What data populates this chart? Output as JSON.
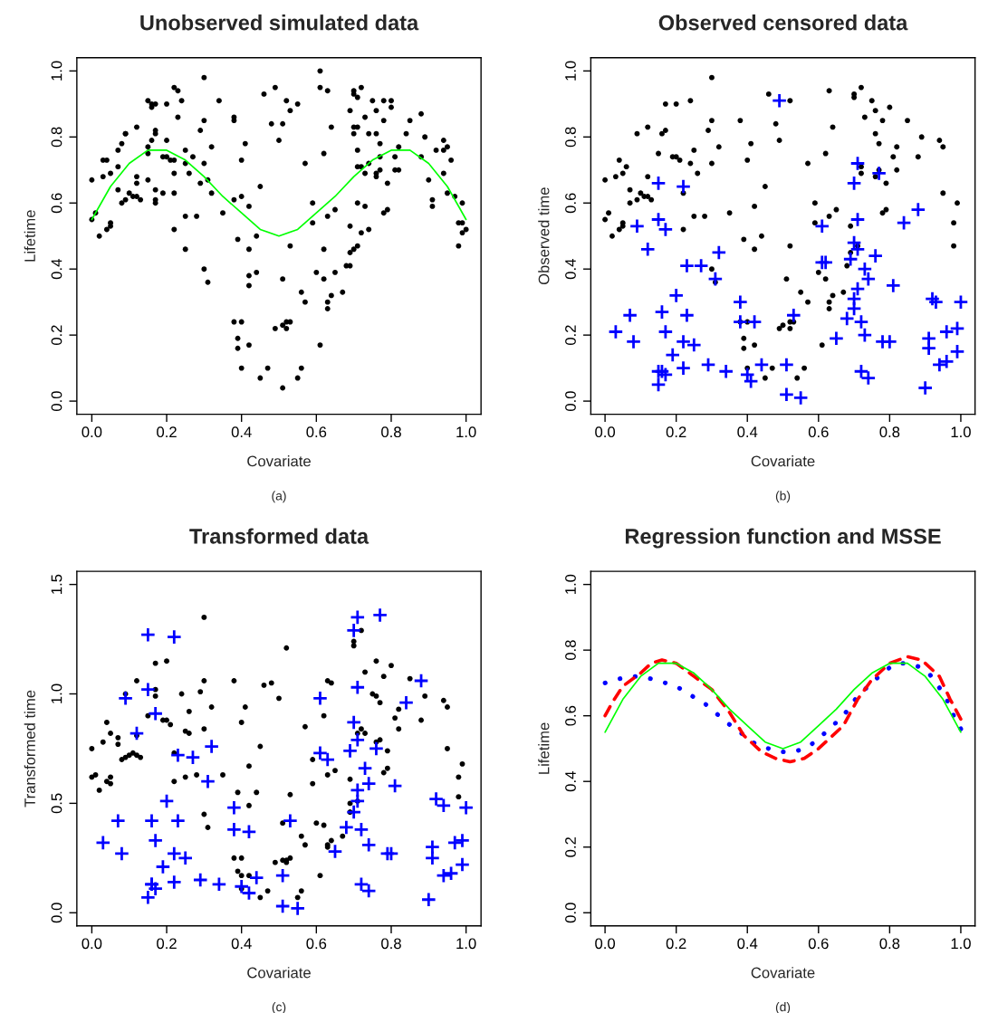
{
  "chart_data": [
    {
      "type": "scatter",
      "title": "Unobserved simulated data",
      "xlabel": "Covariate",
      "ylabel": "Lifetime",
      "annotations": [
        "(a)"
      ],
      "xlim": [
        -0.04,
        1.04
      ],
      "ylim": [
        -0.04,
        1.04
      ],
      "xticks": [
        {
          "value": 0,
          "label": "0.0"
        },
        {
          "value": 0.2,
          "label": "0.2"
        },
        {
          "value": 0.4,
          "label": "0.4"
        },
        {
          "value": 0.6,
          "label": "0.6"
        },
        {
          "value": 0.8,
          "label": "0.8"
        },
        {
          "value": 1,
          "label": "1.0"
        }
      ],
      "yticks": [
        {
          "value": 0,
          "label": "0.0"
        },
        {
          "value": 0.2,
          "label": "0.2"
        },
        {
          "value": 0.4,
          "label": "0.4"
        },
        {
          "value": 0.6,
          "label": "0.6"
        },
        {
          "value": 0.8,
          "label": "0.8"
        },
        {
          "value": 1,
          "label": "1.0"
        }
      ],
      "series": [
        {
          "color": "#000000",
          "marker": "circle",
          "x": [
            0.0,
            0.0,
            0.01,
            0.02,
            0.03,
            0.03,
            0.04,
            0.04,
            0.05,
            0.05,
            0.05,
            0.07,
            0.07,
            0.07,
            0.08,
            0.08,
            0.09,
            0.09,
            0.09,
            0.1,
            0.11,
            0.12,
            0.12,
            0.12,
            0.12,
            0.13,
            0.15,
            0.15,
            0.15,
            0.15,
            0.16,
            0.16,
            0.16,
            0.17,
            0.17,
            0.17,
            0.17,
            0.17,
            0.17,
            0.19,
            0.19,
            0.2,
            0.2,
            0.2,
            0.21,
            0.22,
            0.22,
            0.22,
            0.22,
            0.22,
            0.23,
            0.23,
            0.24,
            0.25,
            0.25,
            0.25,
            0.25,
            0.26,
            0.27,
            0.28,
            0.29,
            0.29,
            0.3,
            0.3,
            0.3,
            0.3,
            0.31,
            0.31,
            0.32,
            0.32,
            0.34,
            0.35,
            0.38,
            0.38,
            0.38,
            0.38,
            0.39,
            0.39,
            0.39,
            0.4,
            0.4,
            0.4,
            0.4,
            0.41,
            0.42,
            0.42,
            0.42,
            0.42,
            0.42,
            0.44,
            0.44,
            0.45,
            0.45,
            0.46,
            0.47,
            0.48,
            0.49,
            0.49,
            0.5,
            0.51,
            0.51,
            0.51,
            0.51,
            0.52,
            0.52,
            0.53,
            0.52,
            0.53,
            0.53,
            0.55,
            0.55,
            0.56,
            0.56,
            0.57,
            0.57,
            0.59,
            0.59,
            0.6,
            0.61,
            0.61,
            0.61,
            0.62,
            0.62,
            0.62,
            0.63,
            0.63,
            0.63,
            0.63,
            0.64,
            0.64,
            0.65,
            0.65,
            0.67,
            0.68,
            0.69,
            0.69,
            0.69,
            0.69,
            0.7,
            0.7,
            0.7,
            0.7,
            0.7,
            0.71,
            0.71,
            0.71,
            0.71,
            0.71,
            0.71,
            0.72,
            0.72,
            0.72,
            0.73,
            0.73,
            0.73,
            0.74,
            0.74,
            0.74,
            0.75,
            0.76,
            0.76,
            0.76,
            0.76,
            0.77,
            0.77,
            0.77,
            0.78,
            0.78,
            0.78,
            0.79,
            0.79,
            0.8,
            0.8,
            0.81,
            0.81,
            0.82,
            0.82,
            0.84,
            0.85,
            0.88,
            0.88,
            0.89,
            0.9,
            0.91,
            0.91,
            0.92,
            0.94,
            0.94,
            0.94,
            0.95,
            0.95,
            0.96,
            0.97,
            0.98,
            0.98,
            0.99,
            0.99,
            0.99,
            1.0
          ],
          "values": [
            0.67,
            0.55,
            0.57,
            0.5,
            0.68,
            0.73,
            0.52,
            0.73,
            0.53,
            0.54,
            0.69,
            0.71,
            0.76,
            0.64,
            0.6,
            0.78,
            0.81,
            0.81,
            0.61,
            0.63,
            0.62,
            0.83,
            0.68,
            0.66,
            0.62,
            0.61,
            0.67,
            0.77,
            0.75,
            0.91,
            0.9,
            0.89,
            0.79,
            0.81,
            0.82,
            0.6,
            0.61,
            0.64,
            0.9,
            0.63,
            0.74,
            0.9,
            0.79,
            0.74,
            0.73,
            0.63,
            0.73,
            0.69,
            0.52,
            0.95,
            0.94,
            0.86,
            0.91,
            0.72,
            0.56,
            0.46,
            0.76,
            0.69,
            0.74,
            0.56,
            0.82,
            0.66,
            0.72,
            0.85,
            0.98,
            0.4,
            0.67,
            0.36,
            0.77,
            0.63,
            0.91,
            0.57,
            0.85,
            0.86,
            0.24,
            0.61,
            0.19,
            0.49,
            0.16,
            0.24,
            0.73,
            0.1,
            0.62,
            0.78,
            0.38,
            0.35,
            0.17,
            0.46,
            0.59,
            0.39,
            0.5,
            0.07,
            0.65,
            0.93,
            0.1,
            0.84,
            0.22,
            0.95,
            0.79,
            0.23,
            0.04,
            0.84,
            0.37,
            0.24,
            0.22,
            0.24,
            0.91,
            0.47,
            0.88,
            0.07,
            0.9,
            0.33,
            0.1,
            0.72,
            0.3,
            0.6,
            0.54,
            0.39,
            1.0,
            0.95,
            0.17,
            0.75,
            0.46,
            0.37,
            0.94,
            0.28,
            0.3,
            0.56,
            0.83,
            0.32,
            0.39,
            0.58,
            0.33,
            0.41,
            0.41,
            0.53,
            0.88,
            0.45,
            0.83,
            0.81,
            0.93,
            0.94,
            0.46,
            0.6,
            0.92,
            0.47,
            0.76,
            0.71,
            0.83,
            0.95,
            0.71,
            0.51,
            0.69,
            0.59,
            0.86,
            0.81,
            0.72,
            0.52,
            0.91,
            0.69,
            0.68,
            0.88,
            0.81,
            0.74,
            0.78,
            0.7,
            0.57,
            0.85,
            0.91,
            0.66,
            0.58,
            0.91,
            0.89,
            0.74,
            0.7,
            0.7,
            0.77,
            0.81,
            0.85,
            0.87,
            0.74,
            0.8,
            0.67,
            0.61,
            0.59,
            0.76,
            0.69,
            0.76,
            0.79,
            0.63,
            0.77,
            0.73,
            0.62,
            0.47,
            0.54,
            0.54,
            0.6,
            0.51,
            0.52
          ]
        },
        {
          "type": "line",
          "color": "#00ff00",
          "line_style": "solid",
          "x": [
            0,
            0.05,
            0.1,
            0.15,
            0.2,
            0.25,
            0.3,
            0.35,
            0.4,
            0.45,
            0.5,
            0.55,
            0.6,
            0.65,
            0.7,
            0.75,
            0.8,
            0.85,
            0.9,
            0.95,
            1
          ],
          "values": [
            0.55,
            0.65,
            0.72,
            0.76,
            0.76,
            0.73,
            0.68,
            0.62,
            0.57,
            0.52,
            0.5,
            0.52,
            0.57,
            0.62,
            0.68,
            0.73,
            0.76,
            0.76,
            0.72,
            0.65,
            0.55
          ]
        }
      ]
    },
    {
      "type": "scatter",
      "title": "Observed censored data",
      "xlabel": "Covariate",
      "ylabel": "Observed time",
      "annotations": [
        "(b)"
      ],
      "xlim": [
        -0.04,
        1.04
      ],
      "ylim": [
        -0.04,
        1.04
      ],
      "xticks": [
        {
          "value": 0,
          "label": "0.0"
        },
        {
          "value": 0.2,
          "label": "0.2"
        },
        {
          "value": 0.4,
          "label": "0.4"
        },
        {
          "value": 0.6,
          "label": "0.6"
        },
        {
          "value": 0.8,
          "label": "0.8"
        },
        {
          "value": 1,
          "label": "1.0"
        }
      ],
      "yticks": [
        {
          "value": 0,
          "label": "0.0"
        },
        {
          "value": 0.2,
          "label": "0.2"
        },
        {
          "value": 0.4,
          "label": "0.4"
        },
        {
          "value": 0.6,
          "label": "0.6"
        },
        {
          "value": 0.8,
          "label": "0.8"
        },
        {
          "value": 1,
          "label": "1.0"
        }
      ],
      "series": [
        {
          "color": "#000000",
          "marker": "circle",
          "x": [
            0.0,
            0.0,
            0.01,
            0.02,
            0.03,
            0.04,
            0.04,
            0.05,
            0.05,
            0.05,
            0.06,
            0.07,
            0.07,
            0.09,
            0.09,
            0.1,
            0.11,
            0.12,
            0.12,
            0.12,
            0.13,
            0.15,
            0.16,
            0.17,
            0.17,
            0.19,
            0.2,
            0.2,
            0.21,
            0.22,
            0.22,
            0.24,
            0.24,
            0.25,
            0.25,
            0.26,
            0.28,
            0.29,
            0.3,
            0.3,
            0.3,
            0.3,
            0.31,
            0.32,
            0.35,
            0.38,
            0.38,
            0.39,
            0.39,
            0.39,
            0.4,
            0.4,
            0.4,
            0.41,
            0.42,
            0.42,
            0.42,
            0.44,
            0.45,
            0.45,
            0.46,
            0.47,
            0.48,
            0.49,
            0.49,
            0.5,
            0.51,
            0.52,
            0.52,
            0.53,
            0.52,
            0.52,
            0.54,
            0.55,
            0.56,
            0.57,
            0.57,
            0.59,
            0.59,
            0.6,
            0.61,
            0.62,
            0.62,
            0.63,
            0.63,
            0.63,
            0.63,
            0.64,
            0.64,
            0.65,
            0.67,
            0.68,
            0.69,
            0.69,
            0.7,
            0.7,
            0.71,
            0.72,
            0.72,
            0.72,
            0.73,
            0.75,
            0.76,
            0.76,
            0.76,
            0.77,
            0.77,
            0.78,
            0.78,
            0.79,
            0.79,
            0.8,
            0.81,
            0.82,
            0.82,
            0.85,
            0.88,
            0.89,
            0.94,
            0.95,
            0.95,
            0.98,
            0.98,
            0.99
          ],
          "values": [
            0.67,
            0.55,
            0.57,
            0.5,
            0.68,
            0.52,
            0.73,
            0.53,
            0.54,
            0.69,
            0.71,
            0.64,
            0.6,
            0.81,
            0.61,
            0.63,
            0.62,
            0.83,
            0.68,
            0.62,
            0.61,
            0.75,
            0.81,
            0.82,
            0.9,
            0.74,
            0.9,
            0.74,
            0.73,
            0.63,
            0.52,
            0.91,
            0.72,
            0.56,
            0.76,
            0.69,
            0.56,
            0.82,
            0.72,
            0.85,
            0.98,
            0.4,
            0.36,
            0.77,
            0.57,
            0.85,
            0.24,
            0.19,
            0.49,
            0.16,
            0.24,
            0.73,
            0.1,
            0.78,
            0.17,
            0.46,
            0.59,
            0.5,
            0.07,
            0.65,
            0.93,
            0.1,
            0.84,
            0.22,
            0.79,
            0.23,
            0.37,
            0.24,
            0.22,
            0.24,
            0.91,
            0.47,
            0.07,
            0.33,
            0.1,
            0.72,
            0.3,
            0.6,
            0.54,
            0.39,
            0.17,
            0.75,
            0.37,
            0.94,
            0.28,
            0.3,
            0.56,
            0.83,
            0.32,
            0.58,
            0.33,
            0.41,
            0.53,
            0.45,
            0.93,
            0.92,
            0.47,
            0.95,
            0.71,
            0.69,
            0.86,
            0.91,
            0.68,
            0.88,
            0.81,
            0.78,
            0.7,
            0.57,
            0.85,
            0.66,
            0.58,
            0.89,
            0.74,
            0.7,
            0.77,
            0.85,
            0.74,
            0.8,
            0.79,
            0.63,
            0.77,
            0.54,
            0.47,
            0.6
          ]
        },
        {
          "color": "#0000ff",
          "marker": "cross",
          "x": [
            0.03,
            0.07,
            0.08,
            0.09,
            0.12,
            0.15,
            0.15,
            0.16,
            0.15,
            0.16,
            0.15,
            0.17,
            0.17,
            0.17,
            0.19,
            0.2,
            0.22,
            0.22,
            0.22,
            0.23,
            0.23,
            0.25,
            0.27,
            0.29,
            0.31,
            0.32,
            0.34,
            0.38,
            0.38,
            0.4,
            0.42,
            0.41,
            0.44,
            0.49,
            0.51,
            0.51,
            0.53,
            0.55,
            0.61,
            0.61,
            0.62,
            0.65,
            0.68,
            0.69,
            0.7,
            0.7,
            0.7,
            0.7,
            0.71,
            0.71,
            0.71,
            0.71,
            0.72,
            0.72,
            0.73,
            0.73,
            0.74,
            0.74,
            0.76,
            0.77,
            0.78,
            0.8,
            0.81,
            0.84,
            0.88,
            0.9,
            0.91,
            0.91,
            0.92,
            0.93,
            0.94,
            0.96,
            0.96,
            0.99,
            0.99,
            1.0
          ],
          "values": [
            0.21,
            0.26,
            0.18,
            0.53,
            0.46,
            0.66,
            0.55,
            0.27,
            0.09,
            0.09,
            0.05,
            0.08,
            0.21,
            0.52,
            0.14,
            0.32,
            0.18,
            0.1,
            0.65,
            0.26,
            0.41,
            0.17,
            0.41,
            0.11,
            0.37,
            0.45,
            0.09,
            0.24,
            0.3,
            0.08,
            0.24,
            0.06,
            0.11,
            0.91,
            0.11,
            0.02,
            0.26,
            0.01,
            0.42,
            0.53,
            0.42,
            0.19,
            0.25,
            0.43,
            0.48,
            0.66,
            0.28,
            0.31,
            0.55,
            0.72,
            0.46,
            0.34,
            0.24,
            0.09,
            0.4,
            0.2,
            0.37,
            0.07,
            0.44,
            0.69,
            0.18,
            0.18,
            0.35,
            0.54,
            0.58,
            0.04,
            0.19,
            0.16,
            0.31,
            0.3,
            0.11,
            0.12,
            0.21,
            0.22,
            0.15,
            0.3
          ]
        }
      ]
    },
    {
      "type": "scatter",
      "title": "Transformed data",
      "xlabel": "Covariate",
      "ylabel": "Transformed time",
      "annotations": [
        "(c)"
      ],
      "xlim": [
        -0.04,
        1.04
      ],
      "ylim": [
        -0.06,
        1.56
      ],
      "xticks": [
        {
          "value": 0,
          "label": "0.0"
        },
        {
          "value": 0.2,
          "label": "0.2"
        },
        {
          "value": 0.4,
          "label": "0.4"
        },
        {
          "value": 0.6,
          "label": "0.6"
        },
        {
          "value": 0.8,
          "label": "0.8"
        },
        {
          "value": 1,
          "label": "1.0"
        }
      ],
      "yticks": [
        {
          "value": 0,
          "label": "0.0"
        },
        {
          "value": 0.5,
          "label": "0.5"
        },
        {
          "value": 1,
          "label": "1.0"
        },
        {
          "value": 1.5,
          "label": "1.5"
        }
      ],
      "series": [
        {
          "color": "#000000",
          "marker": "circle",
          "x": [
            0.0,
            0.0,
            0.01,
            0.02,
            0.03,
            0.04,
            0.04,
            0.05,
            0.05,
            0.05,
            0.07,
            0.07,
            0.08,
            0.09,
            0.09,
            0.1,
            0.11,
            0.12,
            0.12,
            0.12,
            0.13,
            0.15,
            0.17,
            0.17,
            0.17,
            0.19,
            0.2,
            0.2,
            0.21,
            0.22,
            0.22,
            0.24,
            0.25,
            0.25,
            0.26,
            0.26,
            0.28,
            0.29,
            0.3,
            0.3,
            0.3,
            0.3,
            0.31,
            0.32,
            0.35,
            0.38,
            0.38,
            0.39,
            0.39,
            0.4,
            0.4,
            0.4,
            0.4,
            0.41,
            0.42,
            0.42,
            0.42,
            0.44,
            0.45,
            0.45,
            0.46,
            0.47,
            0.48,
            0.49,
            0.5,
            0.51,
            0.51,
            0.52,
            0.52,
            0.53,
            0.52,
            0.53,
            0.55,
            0.56,
            0.56,
            0.57,
            0.57,
            0.59,
            0.59,
            0.6,
            0.61,
            0.62,
            0.62,
            0.63,
            0.63,
            0.63,
            0.63,
            0.64,
            0.64,
            0.65,
            0.67,
            0.69,
            0.69,
            0.69,
            0.7,
            0.7,
            0.71,
            0.71,
            0.72,
            0.72,
            0.73,
            0.73,
            0.75,
            0.76,
            0.76,
            0.76,
            0.77,
            0.77,
            0.78,
            0.78,
            0.79,
            0.79,
            0.8,
            0.81,
            0.82,
            0.82,
            0.85,
            0.88,
            0.89,
            0.94,
            0.95,
            0.95,
            0.98,
            0.98,
            0.99
          ],
          "values": [
            0.75,
            0.62,
            0.63,
            0.56,
            0.78,
            0.6,
            0.87,
            0.59,
            0.62,
            0.82,
            0.8,
            0.77,
            0.7,
            1.0,
            0.71,
            0.72,
            0.73,
            1.06,
            0.81,
            0.72,
            0.71,
            0.9,
            0.99,
            1.02,
            1.14,
            0.88,
            1.15,
            0.88,
            0.86,
            0.73,
            0.6,
            1.0,
            0.83,
            0.62,
            0.92,
            0.82,
            0.63,
            1.01,
            0.84,
            1.06,
            1.35,
            0.45,
            0.39,
            0.94,
            0.63,
            1.06,
            0.25,
            0.19,
            0.55,
            0.17,
            0.25,
            0.87,
            0.11,
            0.94,
            0.17,
            0.49,
            0.67,
            0.55,
            0.07,
            0.76,
            1.04,
            0.1,
            1.05,
            0.23,
            0.98,
            0.24,
            0.41,
            0.24,
            0.23,
            0.25,
            1.21,
            0.54,
            0.07,
            0.35,
            0.1,
            0.85,
            0.31,
            0.7,
            0.59,
            0.41,
            0.17,
            0.9,
            0.4,
            1.06,
            0.3,
            0.31,
            0.63,
            1.05,
            0.33,
            0.65,
            0.35,
            0.46,
            0.61,
            0.5,
            1.24,
            1.22,
            0.82,
            0.51,
            1.29,
            0.84,
            0.82,
            1.1,
            1.0,
            1.15,
            0.78,
            0.99,
            0.96,
            0.79,
            0.64,
            1.08,
            0.74,
            0.66,
            1.13,
            0.89,
            0.84,
            0.93,
            1.07,
            0.88,
            0.99,
            0.97,
            0.75,
            0.94,
            0.62,
            0.53,
            0.68
          ]
        },
        {
          "color": "#0000ff",
          "marker": "cross",
          "x": [
            0.03,
            0.07,
            0.08,
            0.09,
            0.12,
            0.15,
            0.15,
            0.16,
            0.15,
            0.16,
            0.16,
            0.17,
            0.17,
            0.17,
            0.19,
            0.2,
            0.22,
            0.22,
            0.22,
            0.23,
            0.23,
            0.25,
            0.27,
            0.29,
            0.31,
            0.32,
            0.34,
            0.38,
            0.38,
            0.4,
            0.42,
            0.42,
            0.44,
            0.51,
            0.51,
            0.53,
            0.55,
            0.61,
            0.61,
            0.63,
            0.65,
            0.68,
            0.69,
            0.7,
            0.7,
            0.71,
            0.7,
            0.71,
            0.71,
            0.71,
            0.71,
            0.72,
            0.72,
            0.73,
            0.74,
            0.74,
            0.74,
            0.76,
            0.77,
            0.79,
            0.8,
            0.81,
            0.84,
            0.88,
            0.9,
            0.91,
            0.91,
            0.92,
            0.94,
            0.94,
            0.96,
            0.97,
            0.99,
            0.99,
            1.0
          ],
          "values": [
            0.32,
            0.42,
            0.27,
            0.98,
            0.82,
            1.27,
            1.02,
            0.42,
            0.07,
            0.13,
            0.13,
            0.11,
            0.33,
            0.91,
            0.21,
            0.51,
            0.14,
            0.27,
            1.26,
            0.42,
            0.72,
            0.25,
            0.71,
            0.15,
            0.6,
            0.76,
            0.13,
            0.38,
            0.48,
            0.12,
            0.37,
            0.09,
            0.16,
            0.03,
            0.17,
            0.42,
            0.02,
            0.73,
            0.98,
            0.7,
            0.28,
            0.39,
            0.74,
            0.87,
            1.29,
            1.03,
            0.46,
            0.51,
            1.35,
            0.79,
            0.56,
            0.38,
            0.13,
            0.66,
            0.31,
            0.59,
            0.1,
            0.75,
            1.36,
            0.27,
            0.27,
            0.58,
            0.96,
            1.06,
            0.06,
            0.3,
            0.25,
            0.52,
            0.49,
            0.17,
            0.18,
            0.32,
            0.33,
            0.22,
            0.48
          ]
        }
      ]
    },
    {
      "type": "line",
      "title": "Regression function and MSSE",
      "xlabel": "Covariate",
      "ylabel": "Lifetime",
      "annotations": [
        "(d)"
      ],
      "xlim": [
        -0.04,
        1.04
      ],
      "ylim": [
        -0.04,
        1.04
      ],
      "xticks": [
        {
          "value": 0,
          "label": "0.0"
        },
        {
          "value": 0.2,
          "label": "0.2"
        },
        {
          "value": 0.4,
          "label": "0.4"
        },
        {
          "value": 0.6,
          "label": "0.6"
        },
        {
          "value": 0.8,
          "label": "0.8"
        },
        {
          "value": 1,
          "label": "1.0"
        }
      ],
      "yticks": [
        {
          "value": 0,
          "label": "0.0"
        },
        {
          "value": 0.2,
          "label": "0.2"
        },
        {
          "value": 0.4,
          "label": "0.4"
        },
        {
          "value": 0.6,
          "label": "0.6"
        },
        {
          "value": 0.8,
          "label": "0.8"
        },
        {
          "value": 1,
          "label": "1.0"
        }
      ],
      "series": [
        {
          "type": "line",
          "color": "#00ff00",
          "line_style": "solid",
          "x": [
            0,
            0.05,
            0.1,
            0.15,
            0.2,
            0.25,
            0.3,
            0.35,
            0.4,
            0.45,
            0.5,
            0.55,
            0.6,
            0.65,
            0.7,
            0.75,
            0.8,
            0.85,
            0.9,
            0.95,
            1
          ],
          "values": [
            0.55,
            0.65,
            0.72,
            0.76,
            0.76,
            0.73,
            0.68,
            0.62,
            0.57,
            0.52,
            0.5,
            0.52,
            0.57,
            0.62,
            0.68,
            0.73,
            0.76,
            0.76,
            0.72,
            0.65,
            0.55
          ]
        },
        {
          "color": "#0000ff",
          "line_style": "dotted",
          "x": [
            0.0,
            0.03,
            0.07,
            0.1,
            0.14,
            0.17,
            0.2,
            0.23,
            0.26,
            0.29,
            0.32,
            0.34,
            0.37,
            0.4,
            0.43,
            0.46,
            0.49,
            0.53,
            0.56,
            0.59,
            0.62,
            0.64,
            0.67,
            0.69,
            0.71,
            0.74,
            0.76,
            0.79,
            0.82,
            0.85,
            0.88,
            0.91,
            0.93,
            0.95,
            0.97,
            0.98,
            1.0
          ],
          "values": [
            0.7,
            0.71,
            0.72,
            0.72,
            0.71,
            0.7,
            0.69,
            0.67,
            0.65,
            0.63,
            0.6,
            0.58,
            0.56,
            0.53,
            0.51,
            0.5,
            0.49,
            0.49,
            0.5,
            0.52,
            0.55,
            0.57,
            0.6,
            0.63,
            0.66,
            0.69,
            0.71,
            0.74,
            0.76,
            0.76,
            0.75,
            0.73,
            0.7,
            0.67,
            0.63,
            0.6,
            0.56
          ]
        },
        {
          "color": "#ff0000",
          "line_style": "dashed",
          "x": [
            0,
            0.02,
            0.05,
            0.1,
            0.13,
            0.16,
            0.2,
            0.25,
            0.3,
            0.35,
            0.39,
            0.44,
            0.48,
            0.52,
            0.56,
            0.6,
            0.63,
            0.67,
            0.71,
            0.75,
            0.8,
            0.85,
            0.89,
            0.94,
            0.97,
            1
          ],
          "values": [
            0.6,
            0.64,
            0.69,
            0.73,
            0.76,
            0.77,
            0.76,
            0.72,
            0.68,
            0.61,
            0.54,
            0.49,
            0.47,
            0.46,
            0.47,
            0.5,
            0.53,
            0.57,
            0.65,
            0.71,
            0.76,
            0.78,
            0.77,
            0.72,
            0.65,
            0.59
          ]
        }
      ]
    }
  ]
}
